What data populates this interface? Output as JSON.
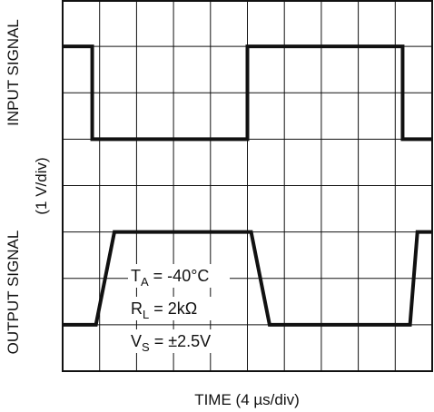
{
  "chart_data": {
    "type": "line",
    "title": "",
    "xlabel": "TIME (4 µs/div)",
    "ylabel_top": "INPUT SIGNAL",
    "ylabel_bottom": "OUTPUT SIGNAL",
    "yscale": "(1 V/div)",
    "divisions": {
      "x": 10,
      "y": 8
    },
    "grid": true,
    "xlim": [
      0,
      10
    ],
    "ylim": [
      0,
      8
    ],
    "conditions": [
      {
        "sym": "T",
        "sub": "A",
        "rest": " = -40°C"
      },
      {
        "sym": "R",
        "sub": "L",
        "rest": " = 2kΩ"
      },
      {
        "sym": "V",
        "sub": "S",
        "rest": " = ±2.5V"
      }
    ],
    "series": [
      {
        "points": [
          [
            0,
            7.0
          ],
          [
            0.8,
            7.0
          ],
          [
            0.8,
            5.0
          ],
          [
            5.0,
            5.0
          ],
          [
            5.0,
            7.0
          ],
          [
            9.2,
            7.0
          ],
          [
            9.2,
            5.0
          ],
          [
            10.0,
            5.0
          ]
        ]
      },
      {
        "points": [
          [
            0,
            1.0
          ],
          [
            0.9,
            1.0
          ],
          [
            1.4,
            3.0
          ],
          [
            5.1,
            3.0
          ],
          [
            5.6,
            1.0
          ],
          [
            9.4,
            1.0
          ],
          [
            9.6,
            3.0
          ],
          [
            10.0,
            3.0
          ]
        ]
      }
    ],
    "colors": {
      "trace": "#111111",
      "grid": "#111111"
    }
  }
}
